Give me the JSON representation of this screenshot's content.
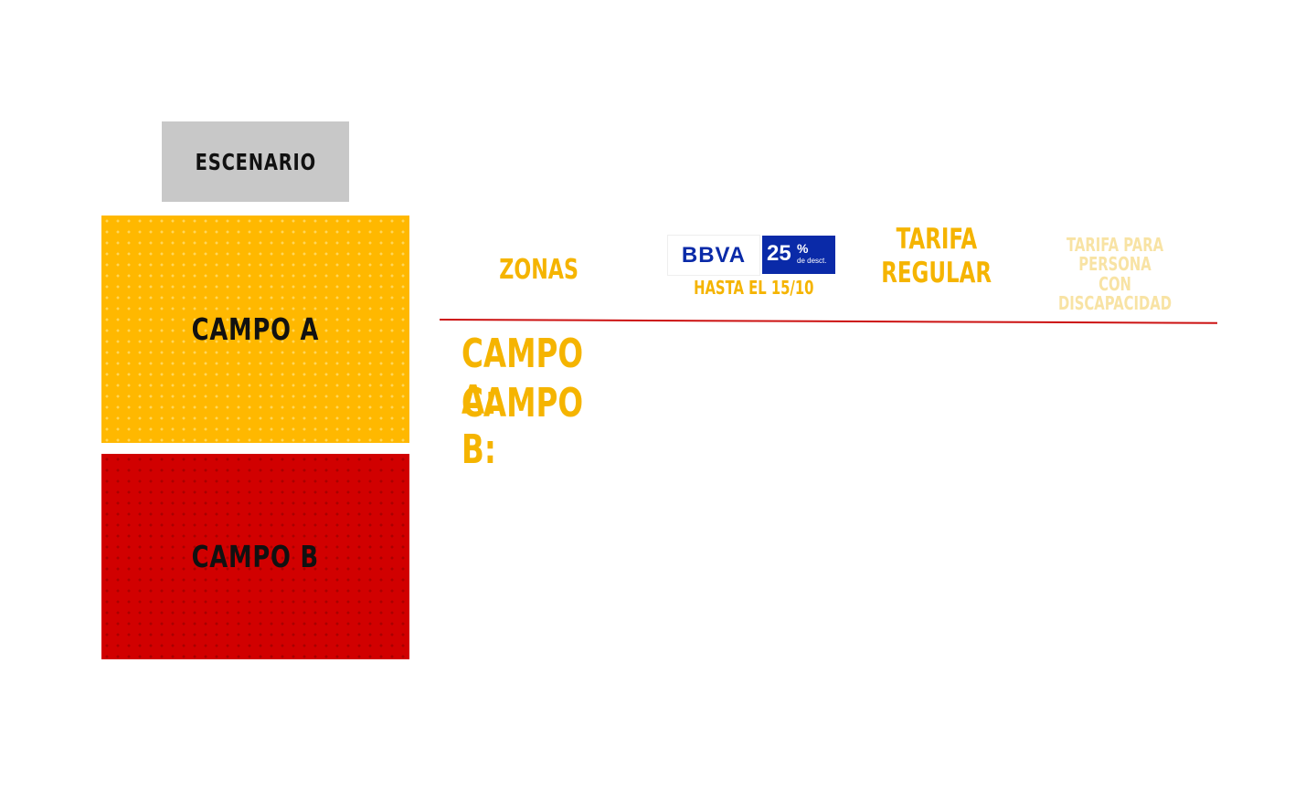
{
  "seat_map": {
    "stage_label": "ESCENARIO",
    "zones": [
      {
        "label": "CAMPO A",
        "color": "#ffb800"
      },
      {
        "label": "CAMPO B",
        "color": "#d10000"
      }
    ]
  },
  "price_table": {
    "headers": {
      "zonas": "ZONAS",
      "bank_logo_text": "BBVA",
      "discount_value": "25",
      "discount_symbol": "%",
      "discount_caption": "de desct.",
      "discount_deadline": "HASTA EL 15/10",
      "regular_line1": "TARIFA",
      "regular_line2": "REGULAR",
      "disability_line1": "TARIFA PARA PERSONA",
      "disability_line2": "CON DISCAPACIDAD"
    },
    "rows": [
      {
        "zone": "CAMPO A:"
      },
      {
        "zone": "CAMPO B:"
      }
    ]
  },
  "colors": {
    "accent_yellow": "#f5b400",
    "pale_yellow": "#f8e3a4",
    "divider_red": "#cc1111",
    "bbva_blue": "#0a2aa8"
  }
}
